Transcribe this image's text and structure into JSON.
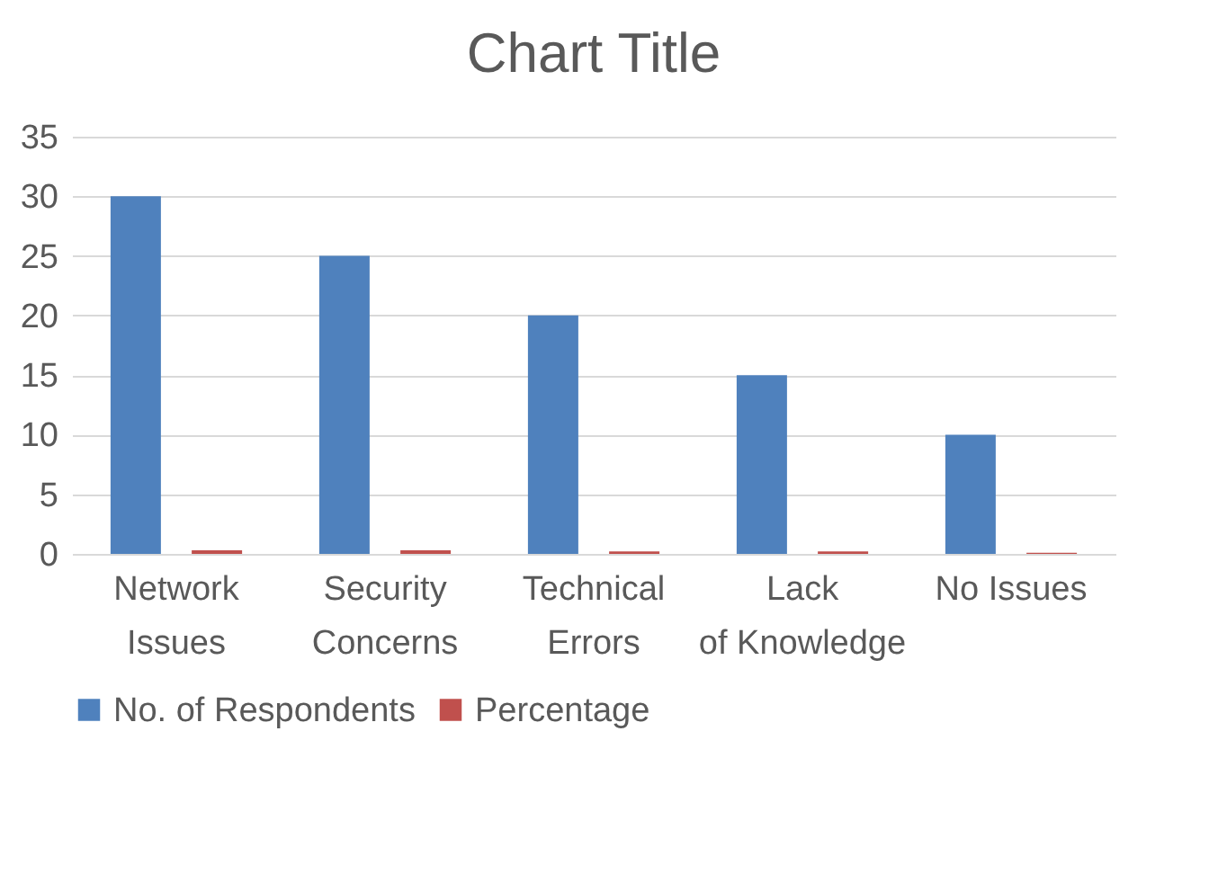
{
  "chart_data": {
    "type": "bar",
    "title": "Chart Title",
    "categories": [
      "Network Issues",
      "Security Concerns",
      "Technical Errors",
      "Lack of Knowledge",
      "No Issues"
    ],
    "series": [
      {
        "name": "No. of Respondents",
        "color": "#4f81bd",
        "values": [
          30,
          25,
          20,
          15,
          10
        ]
      },
      {
        "name": "Percentage",
        "color": "#c0504d",
        "values": [
          0.3,
          0.3,
          0.2,
          0.2,
          0.1
        ]
      }
    ],
    "ylim": [
      0,
      35
    ],
    "yticks": [
      0,
      5,
      10,
      15,
      20,
      25,
      30,
      35
    ],
    "grid": "y",
    "legend": "bottom"
  }
}
